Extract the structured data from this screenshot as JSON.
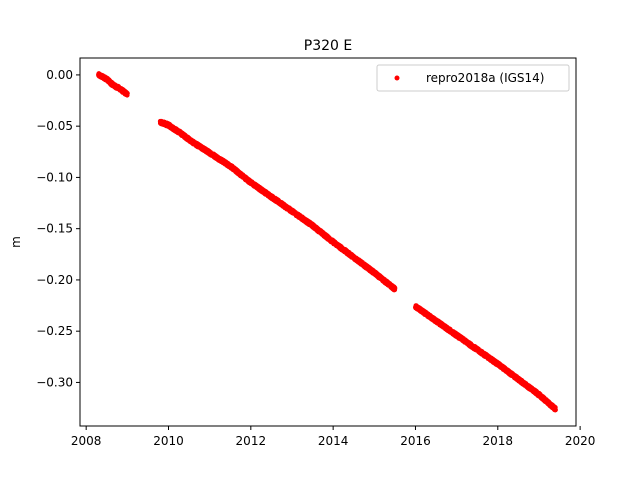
{
  "chart_data": {
    "type": "scatter",
    "title": "P320 E",
    "xlabel": "",
    "ylabel": "m",
    "xlim": [
      2007.85,
      2019.9
    ],
    "ylim": [
      -0.3425,
      0.0165
    ],
    "xticks": [
      2008,
      2010,
      2012,
      2014,
      2016,
      2018,
      2020
    ],
    "yticks": [
      0.0,
      -0.05,
      -0.1,
      -0.15,
      -0.2,
      -0.25,
      -0.3
    ],
    "xtick_labels": [
      "2008",
      "2010",
      "2012",
      "2014",
      "2016",
      "2018",
      "2020"
    ],
    "ytick_labels": [
      "0.00",
      "−0.05",
      "−0.10",
      "−0.15",
      "−0.20",
      "−0.25",
      "−0.30"
    ],
    "grid": false,
    "legend_position": "top-right",
    "series": [
      {
        "name": "repro2018a (IGS14)",
        "color": "#ff0000",
        "marker": "point",
        "segments": [
          {
            "x": [
              2008.3,
              2008.4,
              2008.5,
              2008.6,
              2008.7,
              2008.8,
              2008.9,
              2009.0
            ],
            "y": [
              0.0,
              -0.002,
              -0.004,
              -0.008,
              -0.011,
              -0.013,
              -0.016,
              -0.019
            ]
          },
          {
            "x": [
              2009.8,
              2010.0,
              2010.3,
              2010.6,
              2011.0,
              2011.5,
              2012.0,
              2012.5,
              2013.0,
              2013.5,
              2014.0,
              2014.5,
              2015.0,
              2015.5
            ],
            "y": [
              -0.046,
              -0.049,
              -0.057,
              -0.066,
              -0.076,
              -0.089,
              -0.105,
              -0.119,
              -0.133,
              -0.147,
              -0.163,
              -0.178,
              -0.193,
              -0.209
            ]
          },
          {
            "x": [
              2016.0,
              2016.5,
              2017.0,
              2017.5,
              2018.0,
              2018.5,
              2019.0,
              2019.4
            ],
            "y": [
              -0.226,
              -0.24,
              -0.254,
              -0.268,
              -0.282,
              -0.297,
              -0.312,
              -0.326
            ]
          }
        ]
      }
    ]
  }
}
